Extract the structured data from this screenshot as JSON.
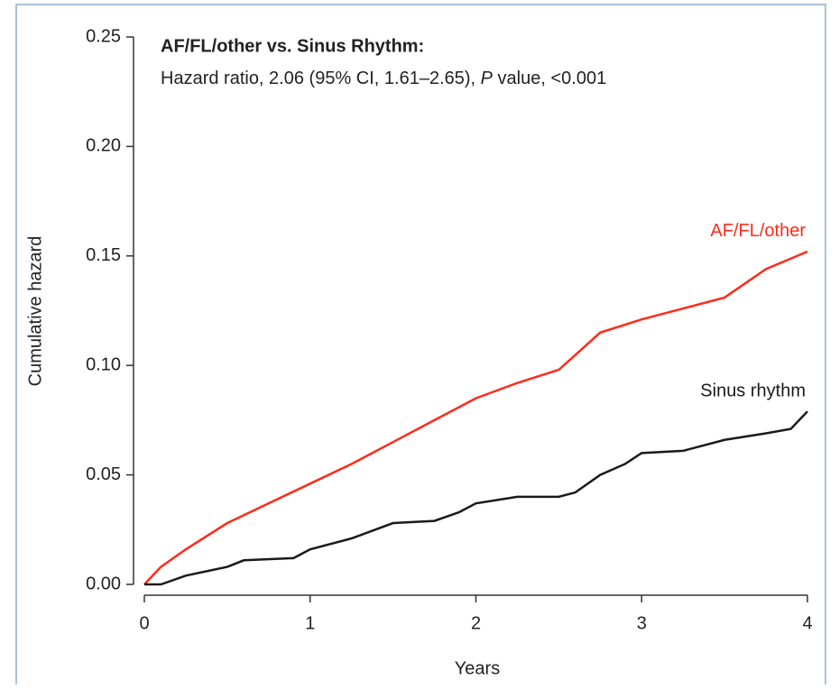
{
  "chart_data": {
    "type": "line",
    "title": "AF/FL/other vs. Sinus Rhythm:",
    "subtitle_parts": [
      "Hazard ratio, 2.06 (95% CI, 1.61–2.65), ",
      "P",
      " value, <0.001"
    ],
    "x_label": "Years",
    "y_label": "Cumulative hazard",
    "xlim": [
      0,
      4
    ],
    "xticks": [
      0,
      1,
      2,
      3,
      4
    ],
    "ylim": [
      0,
      0.25
    ],
    "yticks": [
      {
        "value": 0,
        "label": "0.00"
      },
      0.05,
      {
        "value": 0.1,
        "label": "0.10"
      },
      0.15,
      {
        "value": 0.2,
        "label": "0.20"
      },
      0.25
    ],
    "series": [
      {
        "name": "AF/FL/other",
        "color": "#ff2a1a",
        "x": [
          0,
          0.1,
          0.25,
          0.5,
          0.75,
          1,
          1.25,
          1.5,
          1.75,
          2,
          2.25,
          2.5,
          2.75,
          3,
          3.25,
          3.5,
          3.75,
          4
        ],
        "values": [
          0,
          0.008,
          0.016,
          0.028,
          0.037,
          0.046,
          0.055,
          0.065,
          0.075,
          0.085,
          0.092,
          0.098,
          0.115,
          0.121,
          0.126,
          0.131,
          0.144,
          0.152
        ]
      },
      {
        "name": "Sinus rhythm",
        "color": "#1a1a1a",
        "x": [
          0,
          0.1,
          0.25,
          0.5,
          0.6,
          0.9,
          1,
          1.25,
          1.5,
          1.75,
          1.9,
          2,
          2.25,
          2.5,
          2.6,
          2.75,
          2.9,
          3,
          3.25,
          3.5,
          3.75,
          3.9,
          4
        ],
        "values": [
          0,
          0,
          0.004,
          0.008,
          0.011,
          0.012,
          0.016,
          0.021,
          0.028,
          0.029,
          0.033,
          0.037,
          0.04,
          0.04,
          0.042,
          0.05,
          0.055,
          0.06,
          0.061,
          0.066,
          0.069,
          0.071,
          0.079
        ]
      }
    ]
  }
}
